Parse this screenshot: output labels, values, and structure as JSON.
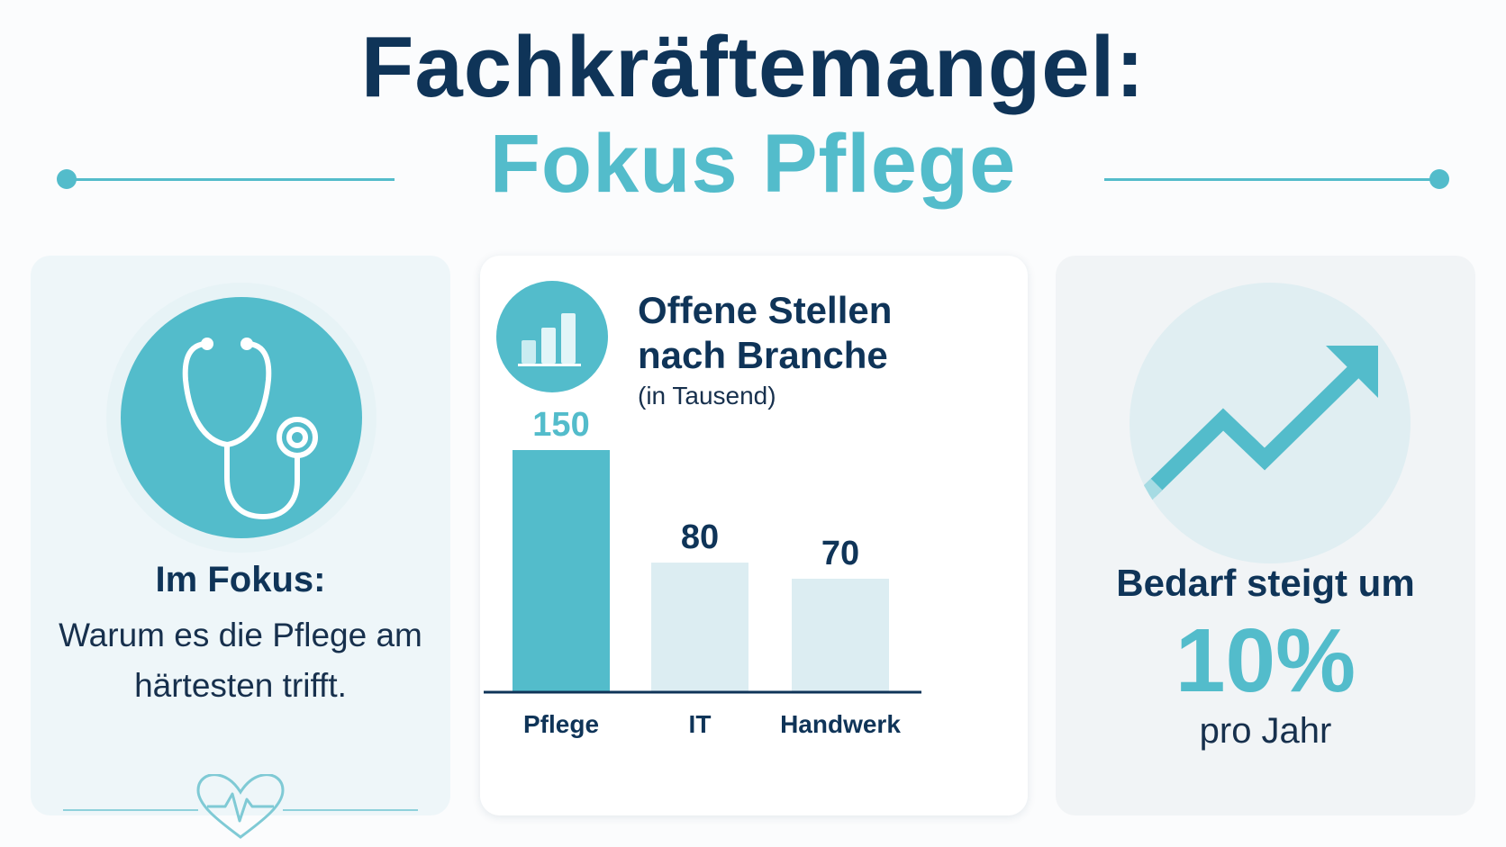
{
  "header": {
    "title_line1": "Fachkräftemangel:",
    "title_line2": "Fokus Pflege"
  },
  "colors": {
    "navy": "#0f3458",
    "teal": "#53bccb",
    "light_bar": "#dcedf2"
  },
  "left_card": {
    "icon": "stethoscope-icon",
    "heading": "Im Fokus:",
    "text": "Warum es die Pflege am härtesten trifft.",
    "footer_icon": "heartbeat-heart-icon"
  },
  "chart_panel": {
    "icon": "bar-chart-icon",
    "title_line1": "Offene Stellen",
    "title_line2": "nach Branche",
    "subtitle": "(in Tausend)"
  },
  "chart_data": {
    "type": "bar",
    "title": "Offene Stellen nach Branche",
    "subtitle": "(in Tausend)",
    "categories": [
      "Pflege",
      "IT",
      "Handwerk"
    ],
    "values": [
      150,
      80,
      70
    ],
    "data_labels": [
      "150",
      "80",
      "70"
    ],
    "highlight": "Pflege",
    "grid": false,
    "ylim": [
      0,
      150
    ]
  },
  "right_card": {
    "icon": "trend-up-arrow-icon",
    "heading": "Bedarf steigt um",
    "value": "10%",
    "unit": "pro Jahr"
  }
}
